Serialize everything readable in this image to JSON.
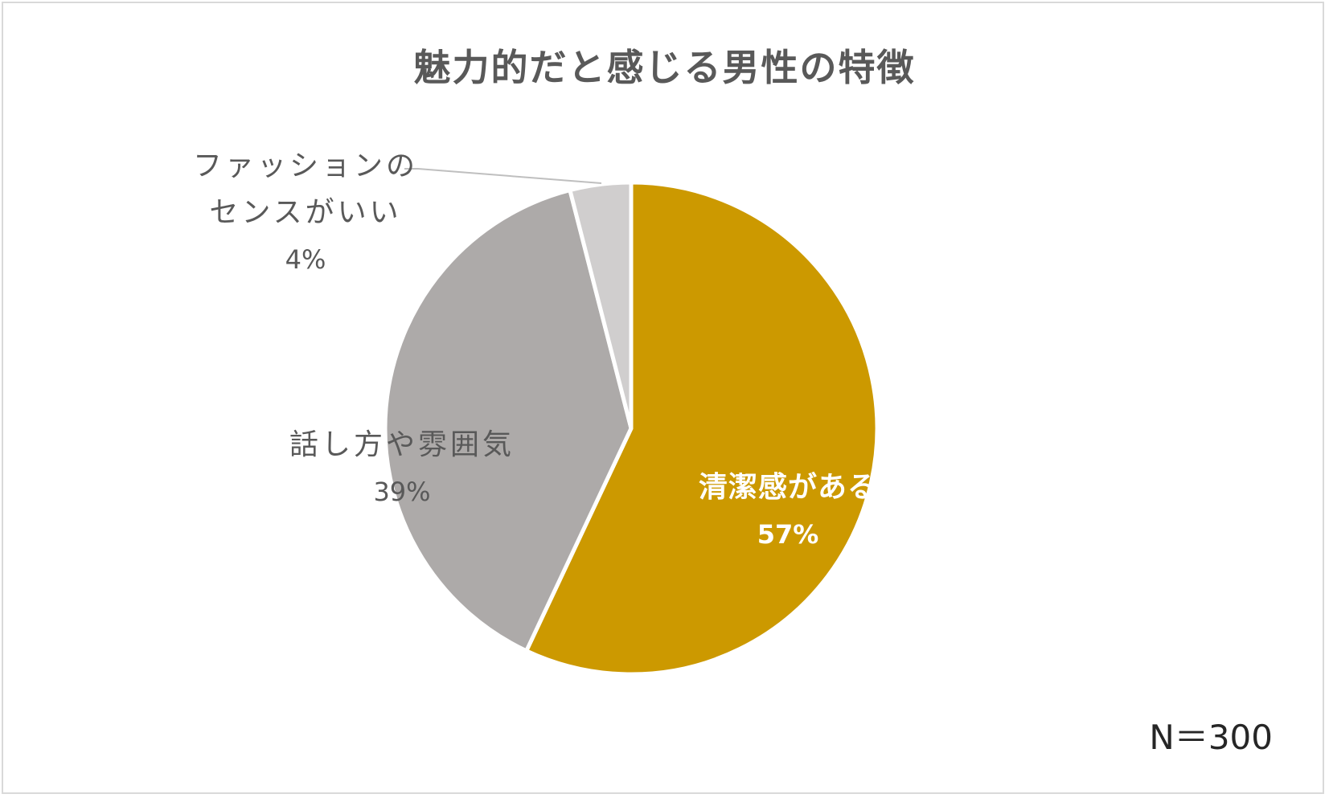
{
  "chart_data": {
    "type": "pie",
    "title": "魅力的だと感じる男性の特徴",
    "slices": [
      {
        "name": "清潔感がある",
        "value": 57,
        "label": "57%",
        "color": "#CC9900"
      },
      {
        "name": "話し方や雰囲気",
        "value": 39,
        "label": "39%",
        "color": "#ADAAA9"
      },
      {
        "name": "ファッションのセンスがいい",
        "name_lines": [
          "ファッションの",
          "センスがいい"
        ],
        "value": 4,
        "label": "4%",
        "color": "#D0CECE"
      }
    ],
    "note": "N＝300"
  }
}
